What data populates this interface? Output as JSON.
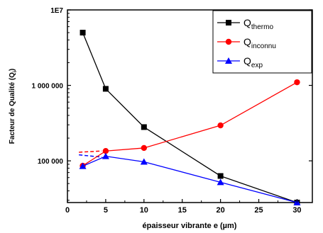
{
  "chart_data": {
    "type": "line",
    "xlabel": "épaisseur vibrante e (µm)",
    "ylabel": "Facteur de Qualité (Q",
    "ylabel_sub": "i",
    "ylabel_close": ")",
    "xlim": [
      0,
      32
    ],
    "ylim": [
      28000,
      10000000
    ],
    "yscale": "log",
    "xticks": [
      0,
      5,
      10,
      15,
      20,
      25,
      30
    ],
    "yticks": [
      {
        "value": 100000,
        "label": "100 000"
      },
      {
        "value": 1000000,
        "label": "1 000 000"
      },
      {
        "value": 10000000,
        "label": "1E7"
      }
    ],
    "grid": false,
    "legend_position": "top-right",
    "series": [
      {
        "name": "Q",
        "sub": "thermo",
        "color": "#000000",
        "marker": "square",
        "x": [
          2,
          5,
          10,
          20,
          30
        ],
        "y": [
          5000000,
          900000,
          280000,
          63000,
          28000
        ]
      },
      {
        "name": "Q",
        "sub": "inconnu",
        "color": "#ff0000",
        "marker": "circle",
        "x": [
          2,
          5,
          10,
          20,
          30
        ],
        "y": [
          86000,
          135000,
          148000,
          295000,
          1100000
        ]
      },
      {
        "name": "Q",
        "sub": "exp",
        "color": "#0000ff",
        "marker": "triangle",
        "x": [
          2,
          5,
          10,
          20,
          30
        ],
        "y": [
          85000,
          115000,
          97000,
          52000,
          28000
        ]
      }
    ],
    "annotations": [
      {
        "type": "dashed-extension",
        "color": "#ff0000",
        "x": [
          1.5,
          4.5
        ],
        "y": [
          130000,
          135000
        ]
      },
      {
        "type": "dashed-extension",
        "color": "#0000ff",
        "x": [
          1.5,
          4.5
        ],
        "y": [
          120000,
          112000
        ]
      }
    ]
  }
}
